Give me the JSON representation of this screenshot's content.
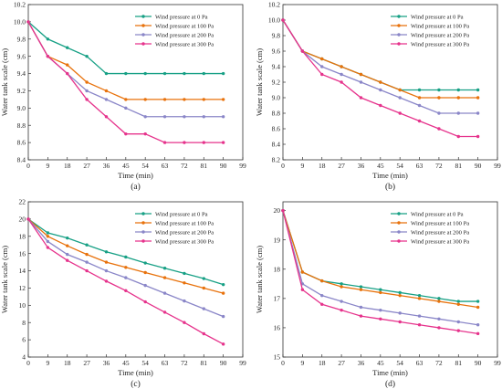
{
  "colors": {
    "wp0": "#17a085",
    "wp100": "#e8720c",
    "wp200": "#8a86c8",
    "wp300": "#e6338c"
  },
  "chart_data": [
    {
      "type": "line",
      "panel_label": "(a)",
      "xlabel": "Time (min)",
      "ylabel": "Water tank scale (cm)",
      "x": [
        0,
        9,
        18,
        27,
        36,
        45,
        54,
        63,
        72,
        81,
        90
      ],
      "xticks": [
        0,
        9,
        18,
        27,
        36,
        45,
        54,
        63,
        72,
        81,
        90,
        99
      ],
      "xlim": [
        0,
        99
      ],
      "ylim": [
        8.4,
        10.2
      ],
      "yticks": [
        8.4,
        8.6,
        8.8,
        9.0,
        9.2,
        9.4,
        9.6,
        9.8,
        10.0,
        10.2
      ],
      "ytick_labels": [
        "8.4",
        "8.6",
        "8.8",
        "9.0",
        "9.2",
        "9.4",
        "9.6",
        "9.8",
        "10.0",
        "10.2"
      ],
      "legend": "top-right",
      "series": [
        {
          "name": "Wind pressure at 0 Pa",
          "color_key": "wp0",
          "values": [
            10.0,
            9.8,
            9.7,
            9.6,
            9.4,
            9.4,
            9.4,
            9.4,
            9.4,
            9.4,
            9.4
          ]
        },
        {
          "name": "Wind pressure at 100 Pa",
          "color_key": "wp100",
          "values": [
            10.0,
            9.6,
            9.5,
            9.3,
            9.2,
            9.1,
            9.1,
            9.1,
            9.1,
            9.1,
            9.1
          ]
        },
        {
          "name": "Wind pressure at 200 Pa",
          "color_key": "wp200",
          "values": [
            10.0,
            9.6,
            9.4,
            9.2,
            9.1,
            9.0,
            8.9,
            8.9,
            8.9,
            8.9,
            8.9
          ]
        },
        {
          "name": "Wind pressure at 300 Pa",
          "color_key": "wp300",
          "values": [
            10.0,
            9.6,
            9.4,
            9.1,
            8.9,
            8.7,
            8.7,
            8.6,
            8.6,
            8.6,
            8.6
          ]
        }
      ]
    },
    {
      "type": "line",
      "panel_label": "(b)",
      "xlabel": "Time (min)",
      "ylabel": "Water tank scale (cm)",
      "x": [
        0,
        9,
        18,
        27,
        36,
        45,
        54,
        63,
        72,
        81,
        90
      ],
      "xticks": [
        0,
        9,
        18,
        27,
        36,
        45,
        54,
        63,
        72,
        81,
        90,
        99
      ],
      "xlim": [
        0,
        99
      ],
      "ylim": [
        8.2,
        10.2
      ],
      "yticks": [
        8.2,
        8.4,
        8.6,
        8.8,
        9.0,
        9.2,
        9.4,
        9.6,
        9.8,
        10.0,
        10.2
      ],
      "ytick_labels": [
        "8.2",
        "8.4",
        "8.6",
        "8.8",
        "9.0",
        "9.2",
        "9.4",
        "9.6",
        "9.8",
        "10.0",
        "10.2"
      ],
      "legend": "top-right",
      "series": [
        {
          "name": "Wind pressure at 0 Pa",
          "color_key": "wp0",
          "values": [
            10.0,
            9.6,
            9.5,
            9.4,
            9.3,
            9.2,
            9.1,
            9.1,
            9.1,
            9.1,
            9.1
          ]
        },
        {
          "name": "Wind pressure at 100 Pa",
          "color_key": "wp100",
          "values": [
            10.0,
            9.6,
            9.5,
            9.4,
            9.3,
            9.2,
            9.1,
            9.0,
            9.0,
            9.0,
            9.0
          ]
        },
        {
          "name": "Wind pressure at 200 Pa",
          "color_key": "wp200",
          "values": [
            10.0,
            9.6,
            9.4,
            9.3,
            9.2,
            9.1,
            9.0,
            8.9,
            8.8,
            8.8,
            8.8
          ]
        },
        {
          "name": "Wind pressure at 300 Pa",
          "color_key": "wp300",
          "values": [
            10.0,
            9.6,
            9.3,
            9.2,
            9.0,
            8.9,
            8.8,
            8.7,
            8.6,
            8.5,
            8.5
          ]
        }
      ]
    },
    {
      "type": "line",
      "panel_label": "(c)",
      "xlabel": "Time (min)",
      "ylabel": "Water tank scale (cm)",
      "x": [
        0,
        9,
        18,
        27,
        36,
        45,
        54,
        63,
        72,
        81,
        90
      ],
      "xticks": [
        0,
        9,
        18,
        27,
        36,
        45,
        54,
        63,
        72,
        81,
        90,
        99
      ],
      "xlim": [
        0,
        99
      ],
      "ylim": [
        4,
        22
      ],
      "yticks": [
        4,
        6,
        8,
        10,
        12,
        14,
        16,
        18,
        20,
        22
      ],
      "ytick_labels": [
        "4",
        "6",
        "8",
        "10",
        "12",
        "14",
        "16",
        "18",
        "20",
        "22"
      ],
      "legend": "top-right",
      "series": [
        {
          "name": "Wind pressure at 0 Pa",
          "color_key": "wp0",
          "values": [
            20.0,
            18.4,
            17.8,
            17.0,
            16.2,
            15.6,
            14.9,
            14.3,
            13.7,
            13.1,
            12.4
          ]
        },
        {
          "name": "Wind pressure at 100 Pa",
          "color_key": "wp100",
          "values": [
            20.0,
            18.0,
            16.9,
            15.9,
            15.0,
            14.4,
            13.8,
            13.2,
            12.6,
            12.0,
            11.4
          ]
        },
        {
          "name": "Wind pressure at 200 Pa",
          "color_key": "wp200",
          "values": [
            20.0,
            17.4,
            15.9,
            15.0,
            14.0,
            13.2,
            12.3,
            11.4,
            10.5,
            9.6,
            8.7
          ]
        },
        {
          "name": "Wind pressure at 300 Pa",
          "color_key": "wp300",
          "values": [
            20.0,
            16.7,
            15.2,
            14.0,
            12.8,
            11.7,
            10.4,
            9.2,
            8.0,
            6.7,
            5.5
          ]
        }
      ]
    },
    {
      "type": "line",
      "panel_label": "(d)",
      "xlabel": "Time (min)",
      "ylabel": "Water tank scale (cm)",
      "x": [
        0,
        9,
        18,
        27,
        36,
        45,
        54,
        63,
        72,
        81,
        90
      ],
      "xticks": [
        0,
        9,
        18,
        27,
        36,
        45,
        54,
        63,
        72,
        81,
        90,
        99
      ],
      "xlim": [
        0,
        99
      ],
      "ylim": [
        15,
        20.3
      ],
      "yticks": [
        15,
        16,
        17,
        18,
        19,
        20
      ],
      "ytick_labels": [
        "15",
        "16",
        "17",
        "18",
        "19",
        "20"
      ],
      "legend": "top-right",
      "series": [
        {
          "name": "Wind pressure at 0 Pa",
          "color_key": "wp0",
          "values": [
            20.0,
            17.9,
            17.6,
            17.5,
            17.4,
            17.3,
            17.2,
            17.1,
            17.0,
            16.9,
            16.9
          ]
        },
        {
          "name": "Wind pressure at 100 Pa",
          "color_key": "wp100",
          "values": [
            20.0,
            17.9,
            17.6,
            17.4,
            17.3,
            17.2,
            17.1,
            17.0,
            16.9,
            16.8,
            16.7
          ]
        },
        {
          "name": "Wind pressure at 200 Pa",
          "color_key": "wp200",
          "values": [
            20.0,
            17.5,
            17.1,
            16.9,
            16.7,
            16.6,
            16.5,
            16.4,
            16.3,
            16.2,
            16.1
          ]
        },
        {
          "name": "Wind pressure at 300 Pa",
          "color_key": "wp300",
          "values": [
            20.0,
            17.3,
            16.8,
            16.6,
            16.4,
            16.3,
            16.2,
            16.1,
            16.0,
            15.9,
            15.8
          ]
        }
      ]
    }
  ]
}
